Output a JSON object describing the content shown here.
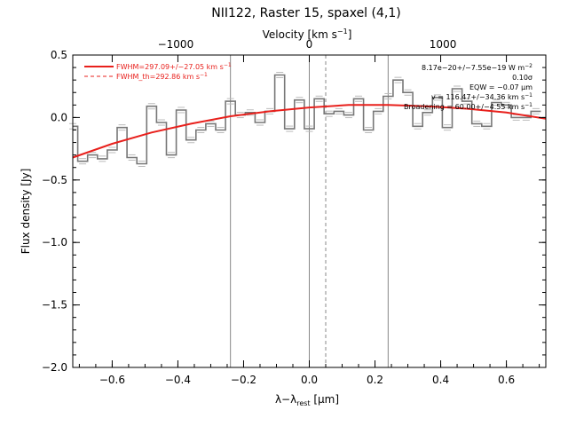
{
  "chart_data": {
    "type": "line",
    "title": "NII122, Raster 15, spaxel (4,1)",
    "xlabel": "λ−λrest [μm]",
    "xlabel_parts": {
      "main": "λ−λ",
      "sub": "rest",
      "unit": " [μm]"
    },
    "ylabel": "Flux density [Jy]",
    "top_axis_label": "Velocity [km s⁻¹]",
    "top_axis_parts": {
      "main": "Velocity [km s",
      "sup": "−1",
      "close": "]"
    },
    "xlim": [
      -0.72,
      0.72
    ],
    "ylim": [
      -2.0,
      0.5
    ],
    "x_ticks": [
      -0.6,
      -0.4,
      -0.2,
      0.0,
      0.2,
      0.4,
      0.6
    ],
    "x_tick_labels": [
      "−0.6",
      "−0.4",
      "−0.2",
      "0.0",
      "0.2",
      "0.4",
      "0.6"
    ],
    "y_ticks": [
      0.5,
      0.0,
      -0.5,
      -1.0,
      -1.5,
      -2.0
    ],
    "y_tick_labels": [
      "0.5",
      "0.0",
      "−0.5",
      "−1.0",
      "−1.5",
      "−2.0"
    ],
    "top_ticks_velocity": [
      -1000,
      0,
      1000
    ],
    "top_tick_labels": [
      "−1000",
      "0",
      "1000"
    ],
    "velocity_per_micron": 2458,
    "vertical_lines_solid": [
      -0.24,
      0.0,
      0.24
    ],
    "vertical_lines_dashed": [
      0.05
    ],
    "legend": [
      {
        "label": "FWHM=297.09+/−27.05 km s⁻¹",
        "main": "FWHM=297.09+/−27.05 km s",
        "sup": "−1",
        "style": "solid",
        "color": "#e8201c"
      },
      {
        "label": "FWHM_th=292.86 km s⁻¹",
        "main": "FWHM_th=292.86 km s",
        "sup": "−1",
        "style": "dashed",
        "color": "#e8201c"
      }
    ],
    "annotations": [
      {
        "main": "8.17e−20+/−7.55e−19 W m",
        "sup": "−2"
      },
      {
        "main": "0.10σ",
        "sup": ""
      },
      {
        "main": "EQW = −0.07 μm",
        "sup": ""
      },
      {
        "main": "v = 116.47+/−34.36 km s",
        "sup": "−1"
      },
      {
        "main": "Broadening = 60.00+/−4.55 km s",
        "sup": "−1"
      }
    ],
    "series": [
      {
        "kind": "step",
        "color": "#777777",
        "x": [
          -0.72,
          -0.69,
          -0.66,
          -0.63,
          -0.6,
          -0.57,
          -0.54,
          -0.51,
          -0.48,
          -0.45,
          -0.42,
          -0.39,
          -0.36,
          -0.33,
          -0.3,
          -0.27,
          -0.24,
          -0.21,
          -0.18,
          -0.15,
          -0.12,
          -0.09,
          -0.06,
          -0.03,
          0.0,
          0.03,
          0.06,
          0.09,
          0.12,
          0.15,
          0.18,
          0.21,
          0.24,
          0.27,
          0.3,
          0.33,
          0.36,
          0.39,
          0.42,
          0.45,
          0.48,
          0.51,
          0.54,
          0.57,
          0.6,
          0.63,
          0.66,
          0.69
        ],
        "y": [
          -0.07,
          -0.35,
          -0.3,
          -0.33,
          -0.26,
          -0.08,
          -0.32,
          -0.37,
          0.09,
          -0.04,
          -0.3,
          0.06,
          -0.18,
          -0.1,
          -0.05,
          -0.1,
          0.13,
          0.02,
          0.04,
          -0.04,
          0.05,
          0.34,
          -0.09,
          0.14,
          -0.09,
          0.15,
          0.03,
          0.05,
          0.02,
          0.15,
          -0.1,
          0.05,
          0.17,
          0.3,
          0.2,
          -0.07,
          0.04,
          0.16,
          -0.08,
          0.23,
          0.13,
          -0.05,
          -0.07,
          0.12,
          0.1,
          0.0,
          0.0,
          0.05
        ]
      },
      {
        "kind": "fit",
        "color": "#e8201c",
        "x": [
          -0.72,
          -0.6,
          -0.48,
          -0.36,
          -0.24,
          -0.12,
          0.0,
          0.12,
          0.24,
          0.36,
          0.48,
          0.6,
          0.72
        ],
        "y": [
          -0.32,
          -0.21,
          -0.12,
          -0.05,
          0.01,
          0.05,
          0.08,
          0.1,
          0.1,
          0.09,
          0.07,
          0.04,
          -0.01
        ]
      }
    ]
  }
}
